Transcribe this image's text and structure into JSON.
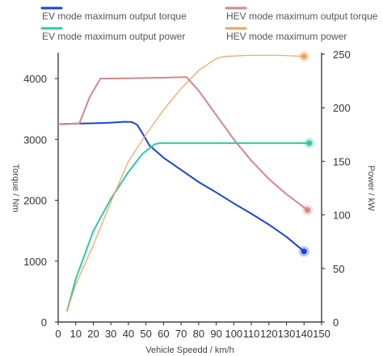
{
  "chart_data": {
    "type": "line",
    "xlabel": "Vehicle Speedd / km/h",
    "ylabel_left": "Torque / Nm",
    "ylabel_right": "Power / kW",
    "xlim": [
      0,
      150
    ],
    "ylim_left": [
      0,
      4400
    ],
    "ylim_right": [
      0,
      250
    ],
    "x_ticks": [
      0,
      10,
      20,
      30,
      40,
      50,
      60,
      70,
      80,
      90,
      100,
      110,
      120,
      130,
      140,
      150
    ],
    "y_left_ticks": [
      0,
      1000,
      2000,
      3000,
      4000
    ],
    "y_right_ticks": [
      0,
      50,
      100,
      150,
      200,
      250
    ],
    "grid": false,
    "legend_position": "top",
    "series": [
      {
        "name": "EV mode maximum output torque",
        "axis": "left",
        "color": "#1a44d8",
        "end_marker": true,
        "points": [
          [
            0,
            3250
          ],
          [
            10,
            3260
          ],
          [
            20,
            3265
          ],
          [
            30,
            3275
          ],
          [
            38,
            3290
          ],
          [
            42,
            3285
          ],
          [
            45,
            3240
          ],
          [
            48,
            3100
          ],
          [
            52,
            2900
          ],
          [
            60,
            2700
          ],
          [
            70,
            2500
          ],
          [
            80,
            2300
          ],
          [
            90,
            2130
          ],
          [
            100,
            1950
          ],
          [
            110,
            1780
          ],
          [
            120,
            1600
          ],
          [
            130,
            1400
          ],
          [
            140,
            1160
          ]
        ]
      },
      {
        "name": "HEV mode maximum output torque",
        "axis": "left",
        "color": "#d4878b",
        "end_marker": true,
        "points": [
          [
            0,
            3250
          ],
          [
            12,
            3260
          ],
          [
            18,
            3700
          ],
          [
            24,
            4000
          ],
          [
            40,
            4005
          ],
          [
            60,
            4015
          ],
          [
            73,
            4025
          ],
          [
            80,
            3800
          ],
          [
            90,
            3400
          ],
          [
            100,
            3000
          ],
          [
            110,
            2650
          ],
          [
            120,
            2350
          ],
          [
            130,
            2100
          ],
          [
            142,
            1840
          ]
        ]
      },
      {
        "name": "EV mode maximum output power",
        "axis": "right",
        "color": "#2ecaa8",
        "end_marker": true,
        "points": [
          [
            5,
            10
          ],
          [
            10,
            40
          ],
          [
            20,
            85
          ],
          [
            30,
            115
          ],
          [
            40,
            140
          ],
          [
            48,
            157
          ],
          [
            55,
            166
          ],
          [
            58,
            167
          ],
          [
            70,
            167
          ],
          [
            80,
            167
          ],
          [
            100,
            167
          ],
          [
            120,
            167
          ],
          [
            143,
            167
          ]
        ]
      },
      {
        "name": "HEV mode maximum power",
        "axis": "right",
        "color": "#f3a05a",
        "end_marker": true,
        "points": [
          [
            5,
            10
          ],
          [
            10,
            35
          ],
          [
            20,
            72
          ],
          [
            30,
            112
          ],
          [
            40,
            150
          ],
          [
            50,
            175
          ],
          [
            60,
            198
          ],
          [
            70,
            218
          ],
          [
            80,
            235
          ],
          [
            90,
            246
          ],
          [
            95,
            248
          ],
          [
            110,
            249
          ],
          [
            125,
            249
          ],
          [
            140,
            248
          ]
        ]
      }
    ]
  }
}
